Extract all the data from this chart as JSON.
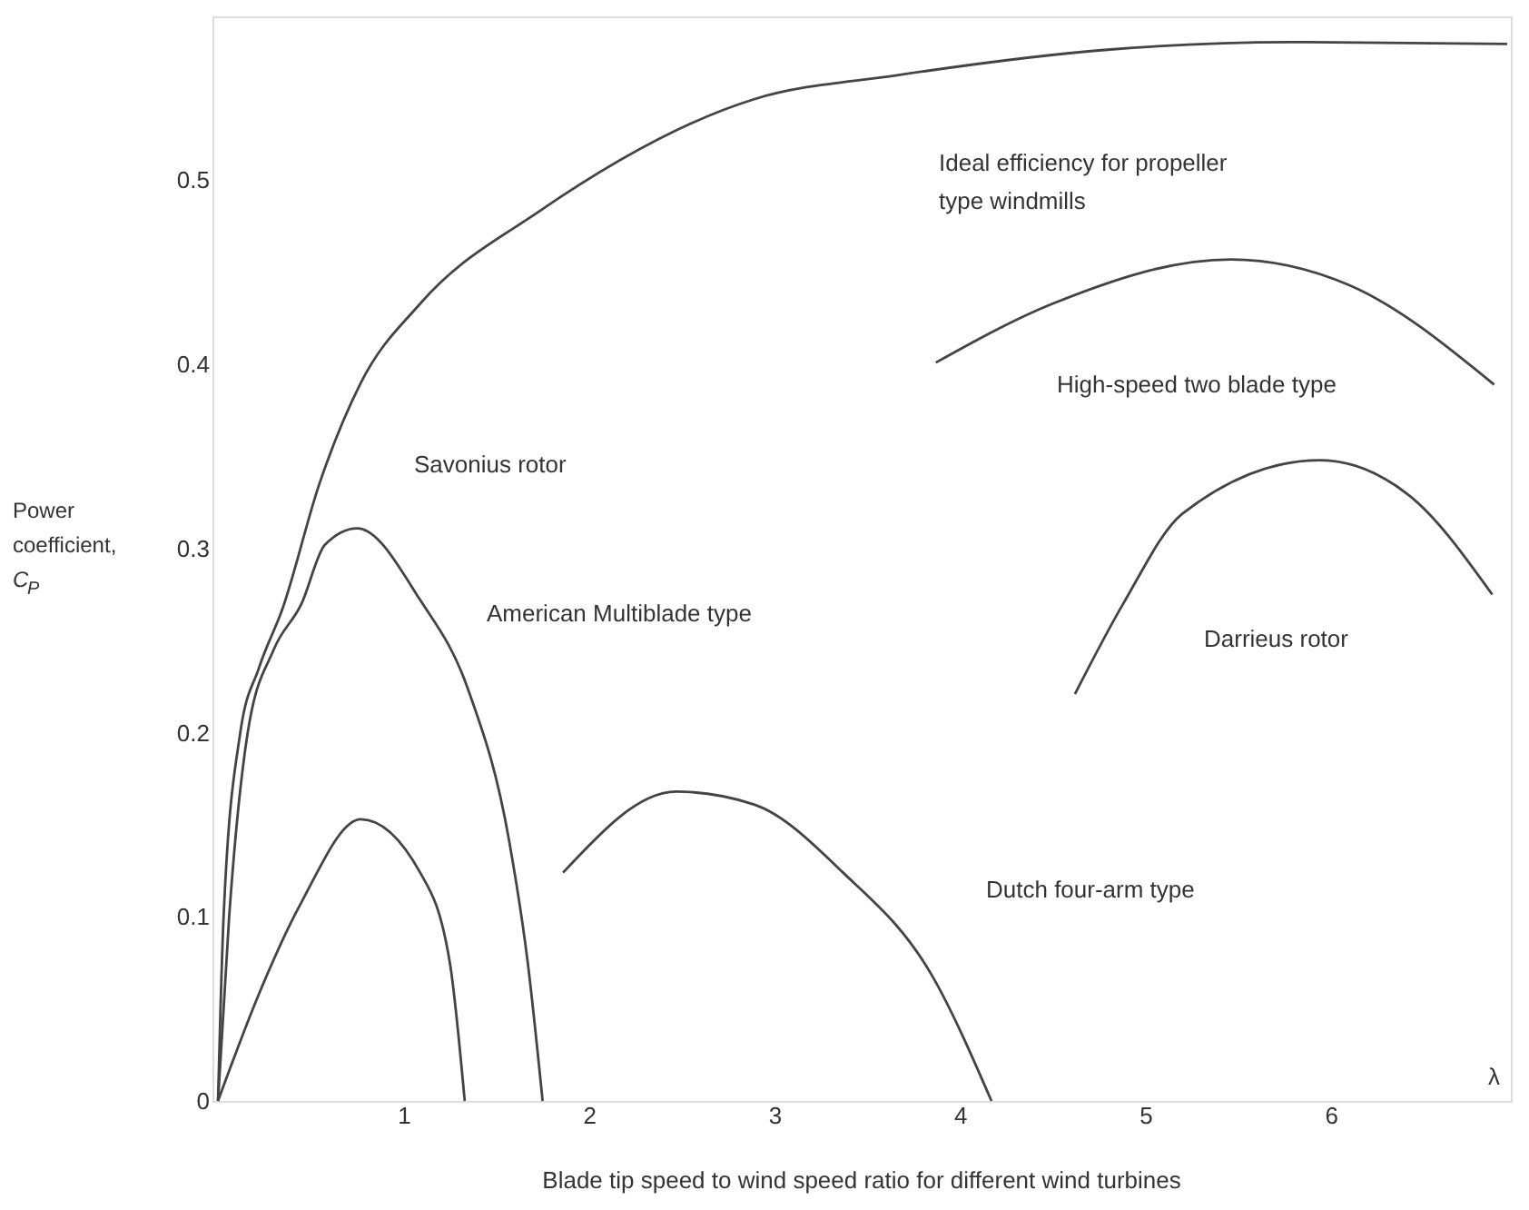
{
  "chart_data": {
    "type": "line",
    "xlabel": "Blade tip speed to wind speed ratio for different wind turbines",
    "ylabel": "Power coefficient, C$_{P}$",
    "xlim": [
      -0.03,
      6.97
    ],
    "ylim": [
      0,
      0.589
    ],
    "xticks": [
      1,
      2,
      3,
      4,
      5,
      6
    ],
    "yticks": [
      0,
      0.1,
      0.2,
      0.3,
      0.4,
      0.5
    ],
    "grid": false,
    "marker": "none",
    "line_style": "solid",
    "series": [
      {
        "color": "#444444",
        "x": [
          0,
          0.03,
          0.12,
          0.22,
          0.35,
          0.546,
          0.77,
          1.09,
          1.73,
          2.89,
          3.66,
          4.81,
          5.78,
          6.95
        ],
        "values": [
          0,
          0.1,
          0.2,
          0.235,
          0.268,
          0.335,
          0.39,
          0.433,
          0.483,
          0.544,
          0.557,
          0.571,
          0.575,
          0.574
        ]
      },
      {
        "color": "#444444",
        "x": [
          0,
          0.06,
          0.16,
          0.3,
          0.45,
          0.576,
          0.75,
          1.09,
          1.35,
          1.57,
          1.67,
          1.75
        ],
        "values": [
          0,
          0.1,
          0.2,
          0.245,
          0.27,
          0.302,
          0.311,
          0.272,
          0.223,
          0.141,
          0.075,
          0
        ]
      },
      {
        "color": "#444444",
        "x": [
          0,
          0.22,
          0.45,
          0.77,
          1.09,
          1.25,
          1.33
        ],
        "values": [
          0,
          0.058,
          0.108,
          0.153,
          0.124,
          0.075,
          0
        ]
      },
      {
        "color": "#444444",
        "x": [
          1.86,
          2.47,
          2.89,
          3.37,
          3.85,
          4.17
        ],
        "values": [
          0.124,
          0.168,
          0.161,
          0.124,
          0.068,
          0
        ]
      },
      {
        "color": "#444444",
        "x": [
          3.87,
          4.5,
          5.46,
          6.1,
          6.88
        ],
        "values": [
          0.401,
          0.433,
          0.457,
          0.443,
          0.389
        ]
      },
      {
        "color": "#444444",
        "x": [
          4.62,
          4.88,
          5.2,
          5.94,
          6.42,
          6.87
        ],
        "values": [
          0.221,
          0.27,
          0.319,
          0.348,
          0.329,
          0.275
        ]
      }
    ],
    "annotations": [
      "Ideal efficiency for propeller\ntype windmills",
      "High-speed two blade type",
      "Savonius rotor",
      "American Multiblade type",
      "Darrieus rotor",
      "Dutch four-arm type",
      "λ"
    ]
  }
}
